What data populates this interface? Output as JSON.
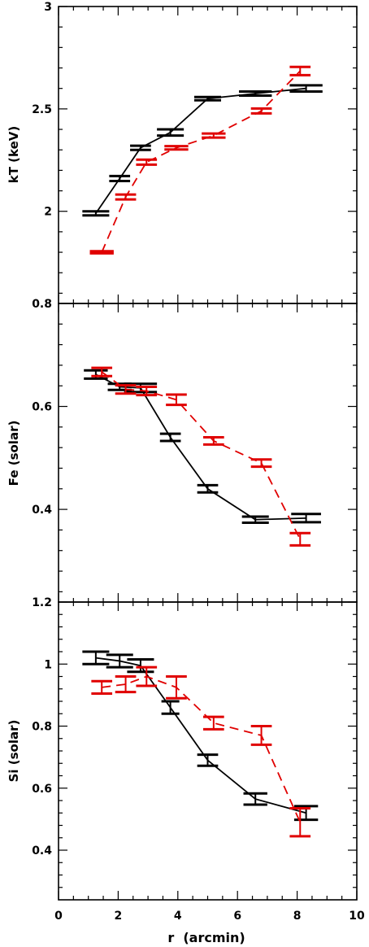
{
  "figure": {
    "xlabel": "r  (arcmin)",
    "xticks": [
      "0",
      "2",
      "4",
      "6",
      "8",
      "10"
    ],
    "colors": {
      "black": "#000000",
      "red": "#e00000"
    }
  },
  "chart_data": [
    {
      "type": "line",
      "panel": "top",
      "ylabel": "kT  (keV)",
      "xlim": [
        0,
        10
      ],
      "ylim": [
        1.55,
        3.0
      ],
      "yticks": [
        "2",
        "2.5",
        "3"
      ],
      "series": [
        {
          "color": "#000000",
          "dash": "solid",
          "x": [
            1.25,
            2.05,
            2.75,
            3.75,
            5.0,
            6.6,
            8.3
          ],
          "y": [
            1.99,
            2.16,
            2.31,
            2.385,
            2.55,
            2.575,
            2.6
          ],
          "err": [
            0.01,
            0.012,
            0.01,
            0.015,
            0.008,
            0.01,
            0.015
          ],
          "xhalf": [
            0.45,
            0.35,
            0.35,
            0.45,
            0.45,
            0.55,
            0.55
          ]
        },
        {
          "color": "#e00000",
          "dash": "dashed",
          "x": [
            1.45,
            2.25,
            2.95,
            3.95,
            5.2,
            6.8,
            8.1
          ],
          "y": [
            1.8,
            2.07,
            2.24,
            2.31,
            2.37,
            2.49,
            2.685
          ],
          "err": [
            0.005,
            0.012,
            0.012,
            0.008,
            0.01,
            0.012,
            0.02
          ],
          "xhalf": [
            0.4,
            0.35,
            0.35,
            0.4,
            0.4,
            0.35,
            0.35
          ]
        }
      ]
    },
    {
      "type": "line",
      "panel": "middle",
      "ylabel": "Fe  (solar)",
      "xlim": [
        0,
        10
      ],
      "ylim": [
        0.22,
        0.8
      ],
      "yticks": [
        "0.4",
        "0.6",
        "0.8"
      ],
      "series": [
        {
          "color": "#000000",
          "dash": "solid",
          "x": [
            1.25,
            2.05,
            2.75,
            3.75,
            5.0,
            6.6,
            8.3
          ],
          "y": [
            0.662,
            0.638,
            0.636,
            0.54,
            0.44,
            0.38,
            0.383
          ],
          "err": [
            0.008,
            0.006,
            0.008,
            0.007,
            0.007,
            0.006,
            0.008
          ],
          "xhalf": [
            0.4,
            0.4,
            0.55,
            0.35,
            0.35,
            0.45,
            0.5
          ]
        },
        {
          "color": "#e00000",
          "dash": "dashed",
          "x": [
            1.45,
            2.25,
            2.95,
            3.95,
            5.2,
            6.8,
            8.1
          ],
          "y": [
            0.667,
            0.633,
            0.63,
            0.613,
            0.533,
            0.49,
            0.342
          ],
          "err": [
            0.008,
            0.008,
            0.008,
            0.01,
            0.007,
            0.007,
            0.012
          ],
          "xhalf": [
            0.35,
            0.35,
            0.35,
            0.35,
            0.35,
            0.35,
            0.35
          ]
        }
      ]
    },
    {
      "type": "line",
      "panel": "bottom",
      "ylabel": "Si  (solar)",
      "xlim": [
        0,
        10
      ],
      "ylim": [
        0.24,
        1.2
      ],
      "yticks": [
        "0.4",
        "0.6",
        "0.8",
        "1",
        "1.2"
      ],
      "series": [
        {
          "color": "#000000",
          "dash": "solid",
          "x": [
            1.25,
            2.05,
            2.75,
            3.75,
            5.0,
            6.6,
            8.3
          ],
          "y": [
            1.02,
            1.01,
            0.995,
            0.86,
            0.69,
            0.565,
            0.52
          ],
          "err": [
            0.02,
            0.02,
            0.02,
            0.02,
            0.018,
            0.018,
            0.022
          ],
          "xhalf": [
            0.45,
            0.45,
            0.45,
            0.3,
            0.35,
            0.4,
            0.4
          ]
        },
        {
          "color": "#e00000",
          "dash": "dashed",
          "x": [
            1.45,
            2.25,
            2.95,
            3.95,
            5.2,
            6.8,
            8.1
          ],
          "y": [
            0.925,
            0.935,
            0.96,
            0.925,
            0.81,
            0.77,
            0.49
          ],
          "err": [
            0.02,
            0.025,
            0.03,
            0.035,
            0.02,
            0.03,
            0.045
          ],
          "xhalf": [
            0.35,
            0.35,
            0.35,
            0.35,
            0.35,
            0.35,
            0.35
          ]
        }
      ]
    }
  ]
}
